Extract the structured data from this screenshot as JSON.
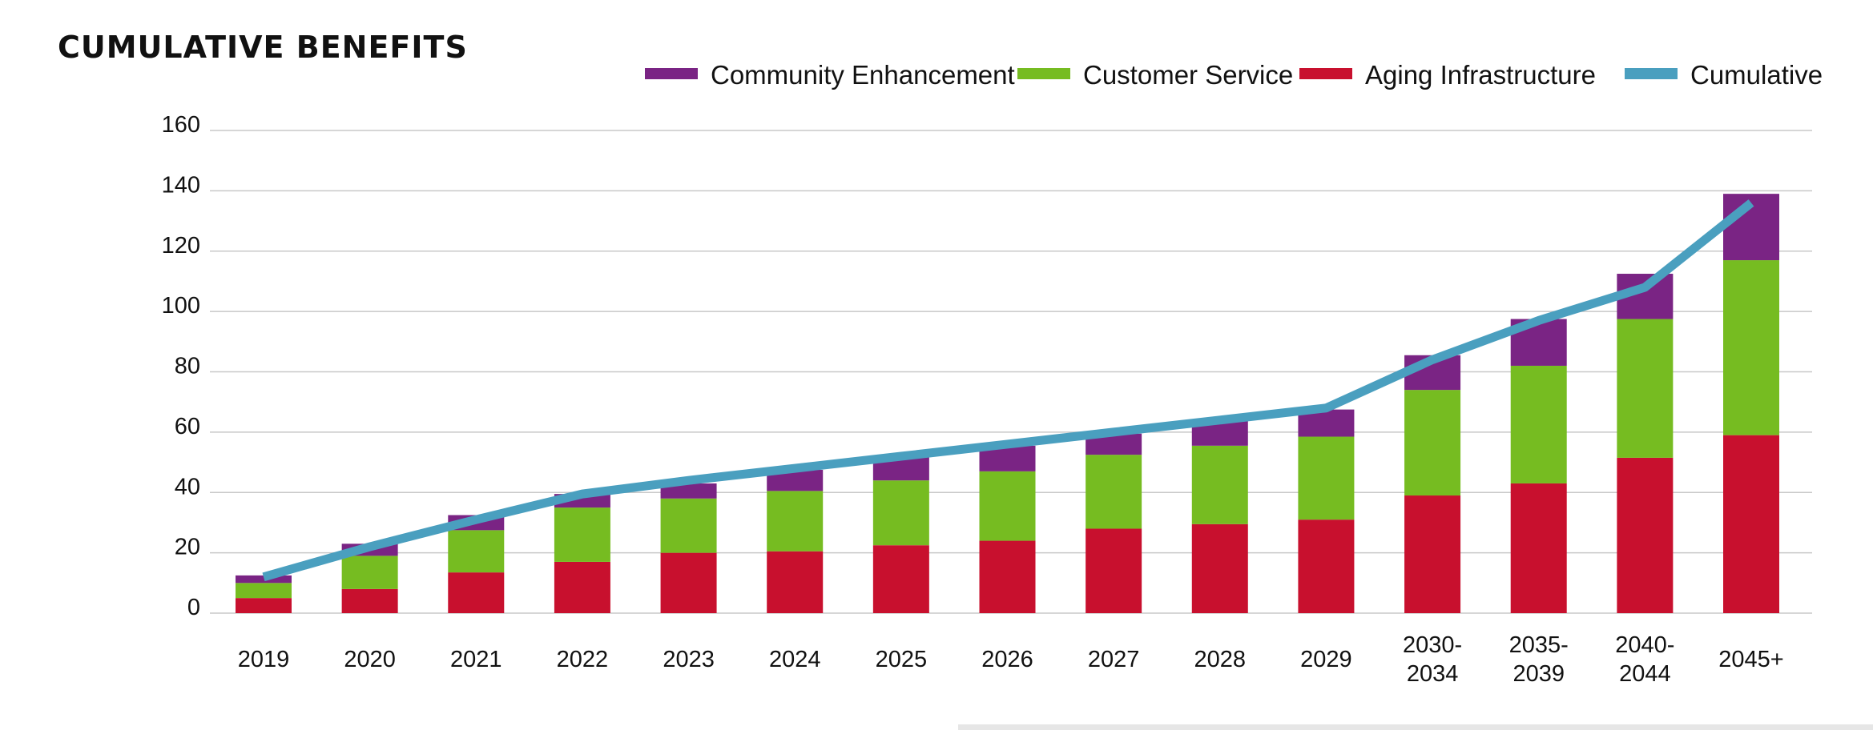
{
  "colors": {
    "community": "#7a2484",
    "customer": "#76bc21",
    "aging": "#c8102e",
    "cumulative": "#4a9fbf",
    "grid": "#c8c8c8"
  },
  "chart_data": {
    "type": "bar",
    "title": "CUMULATIVE BENEFITS",
    "xlabel": "",
    "ylabel": "",
    "ylim": [
      0,
      160
    ],
    "yticks": [
      0,
      20,
      40,
      60,
      80,
      100,
      120,
      140,
      160
    ],
    "grid": true,
    "stacked": true,
    "legend_position": "top-right",
    "categories": [
      "2019",
      "2020",
      "2021",
      "2022",
      "2023",
      "2024",
      "2025",
      "2026",
      "2027",
      "2028",
      "2029",
      "2030-2034",
      "2035-2039",
      "2040-2044",
      "2045+"
    ],
    "category_lines": [
      [
        "2019"
      ],
      [
        "2020"
      ],
      [
        "2021"
      ],
      [
        "2022"
      ],
      [
        "2023"
      ],
      [
        "2024"
      ],
      [
        "2025"
      ],
      [
        "2026"
      ],
      [
        "2027"
      ],
      [
        "2028"
      ],
      [
        "2029"
      ],
      [
        "2030-",
        "2034"
      ],
      [
        "2035-",
        "2039"
      ],
      [
        "2040-",
        "2044"
      ],
      [
        "2045+"
      ]
    ],
    "series": [
      {
        "name": "Aging Infrastructure",
        "type": "bar",
        "color_key": "aging",
        "values": [
          5,
          8,
          13.5,
          17,
          20,
          20.5,
          22.5,
          24,
          28,
          29.5,
          31,
          39,
          43,
          51.5,
          59
        ]
      },
      {
        "name": "Customer Service",
        "type": "bar",
        "color_key": "customer",
        "values": [
          5,
          11,
          14,
          18,
          18,
          20,
          21.5,
          23,
          24.5,
          26,
          27.5,
          35,
          39,
          46,
          58
        ]
      },
      {
        "name": "Community Enhancement",
        "type": "bar",
        "color_key": "community",
        "values": [
          2.5,
          4,
          5,
          4.5,
          5,
          7,
          8,
          8.5,
          7,
          8.5,
          9,
          11.5,
          15.5,
          15,
          22
        ]
      },
      {
        "name": "Cumulative",
        "type": "line",
        "color_key": "cumulative",
        "values": [
          12,
          22,
          31,
          39.5,
          44,
          48,
          52,
          56,
          60,
          64,
          68,
          84,
          97,
          108,
          136
        ]
      }
    ],
    "legend": [
      {
        "label": "Community Enhancement",
        "color_key": "community"
      },
      {
        "label": "Customer Service",
        "color_key": "customer"
      },
      {
        "label": "Aging Infrastructure",
        "color_key": "aging"
      },
      {
        "label": "Cumulative",
        "color_key": "cumulative"
      }
    ]
  }
}
